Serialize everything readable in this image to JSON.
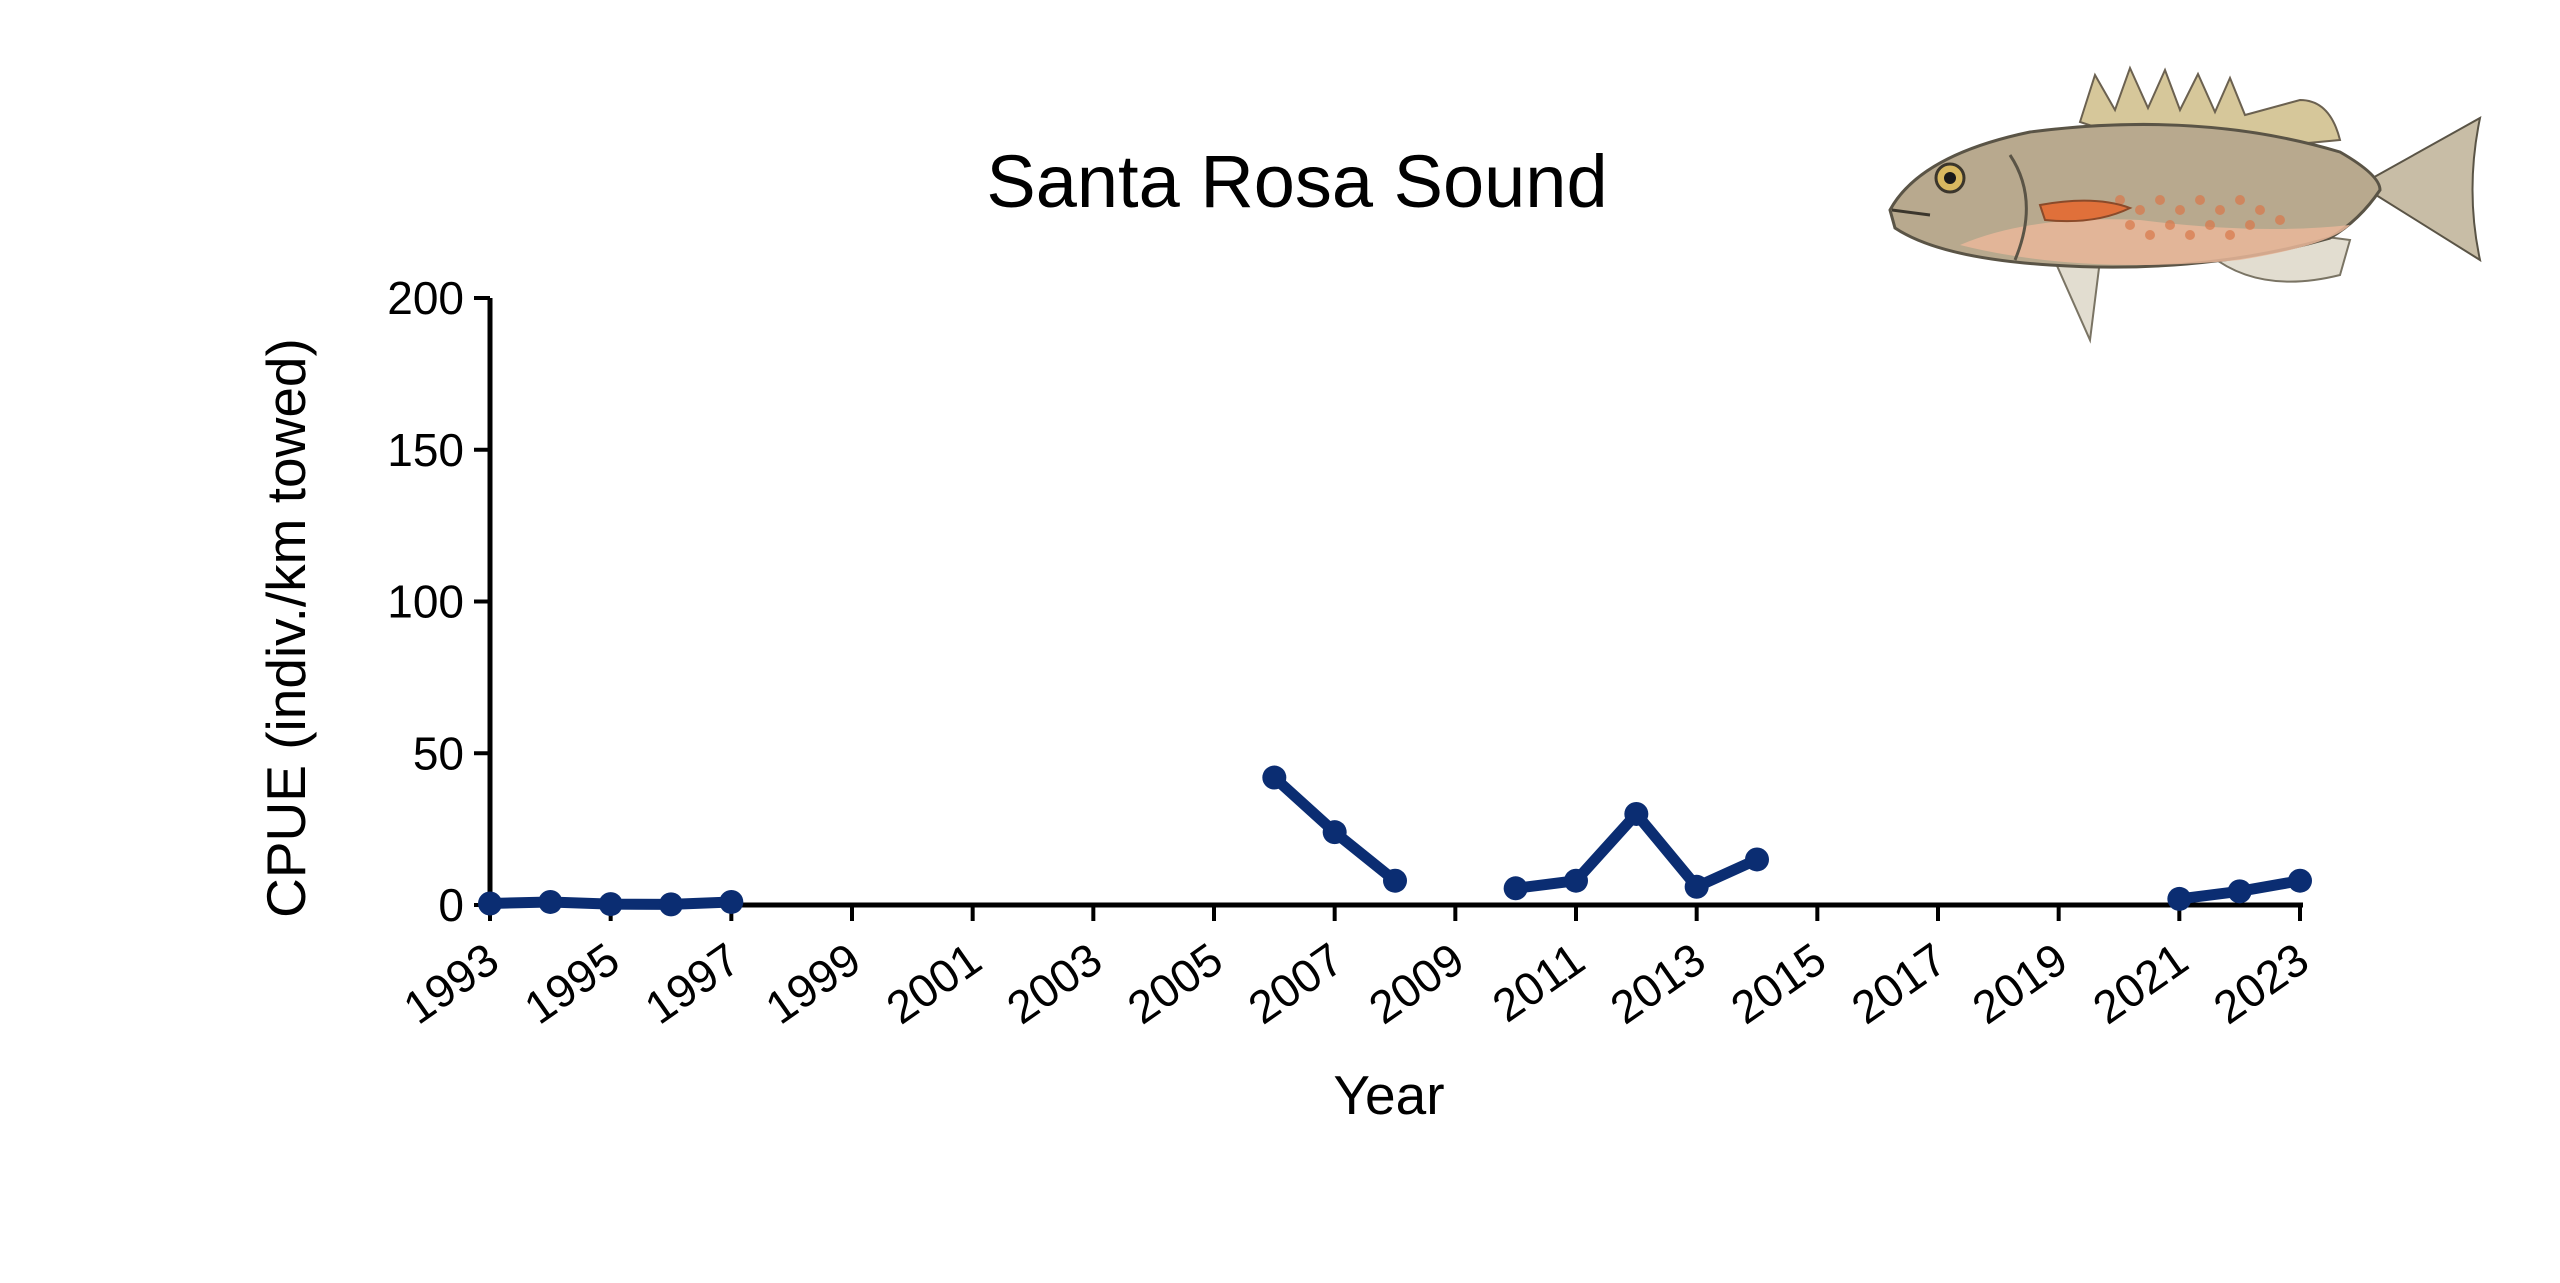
{
  "chart_data": {
    "type": "line",
    "title": "Santa Rosa Sound",
    "xlabel": "Year",
    "ylabel": "CPUE (indiv./km towed)",
    "xlim": [
      1993,
      2023
    ],
    "ylim": [
      0,
      200
    ],
    "yticks": [
      0,
      50,
      100,
      150,
      200
    ],
    "xticks": [
      1993,
      1995,
      1997,
      1999,
      2001,
      2003,
      2005,
      2007,
      2009,
      2011,
      2013,
      2015,
      2017,
      2019,
      2021,
      2023
    ],
    "grid": false,
    "legend": "none",
    "series": [
      {
        "color": "#0b2d72",
        "points": [
          {
            "x": 1993,
            "y": 0.5
          },
          {
            "x": 1994,
            "y": 1
          },
          {
            "x": 1995,
            "y": 0.3
          },
          {
            "x": 1996,
            "y": 0.2
          },
          {
            "x": 1997,
            "y": 1
          },
          {
            "x": 2006,
            "y": 42
          },
          {
            "x": 2007,
            "y": 24
          },
          {
            "x": 2008,
            "y": 8
          },
          {
            "x": 2010,
            "y": 5.5
          },
          {
            "x": 2011,
            "y": 8
          },
          {
            "x": 2012,
            "y": 30
          },
          {
            "x": 2013,
            "y": 6
          },
          {
            "x": 2014,
            "y": 15
          },
          {
            "x": 2021,
            "y": 2
          },
          {
            "x": 2022,
            "y": 4.5
          },
          {
            "x": 2023,
            "y": 8
          }
        ]
      }
    ]
  },
  "illustration": {
    "icon": "fish-illustration",
    "colors": {
      "body": "#b8a98e",
      "belly": "#e9b79a",
      "spots": "#d9784a",
      "fins": "#c8bda6",
      "outline": "#5a5446"
    }
  }
}
